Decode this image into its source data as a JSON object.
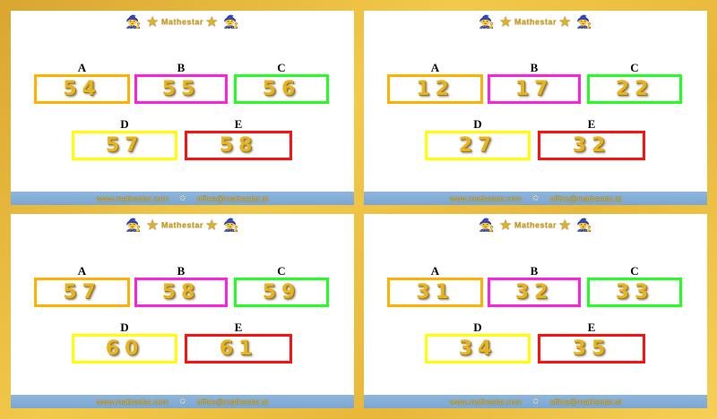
{
  "logo_text": "Mathestar",
  "footer": {
    "website": "www.mathestar.com",
    "email": "office@mathestar.at"
  },
  "box_colors": {
    "A": "#ffb000",
    "B": "#ff22dd",
    "C": "#22ff22",
    "D": "#ffff00",
    "E": "#ff1010"
  },
  "panels": [
    {
      "labels": [
        "A",
        "B",
        "C",
        "D",
        "E"
      ],
      "values": [
        "54",
        "55",
        "56",
        "57",
        "58"
      ]
    },
    {
      "labels": [
        "A",
        "B",
        "C",
        "D",
        "E"
      ],
      "values": [
        "12",
        "17",
        "22",
        "27",
        "32"
      ]
    },
    {
      "labels": [
        "A",
        "B",
        "C",
        "D",
        "E"
      ],
      "values": [
        "57",
        "58",
        "59",
        "60",
        "61"
      ]
    },
    {
      "labels": [
        "A",
        "B",
        "C",
        "D",
        "E"
      ],
      "values": [
        "31",
        "32",
        "33",
        "34",
        "35"
      ]
    }
  ]
}
